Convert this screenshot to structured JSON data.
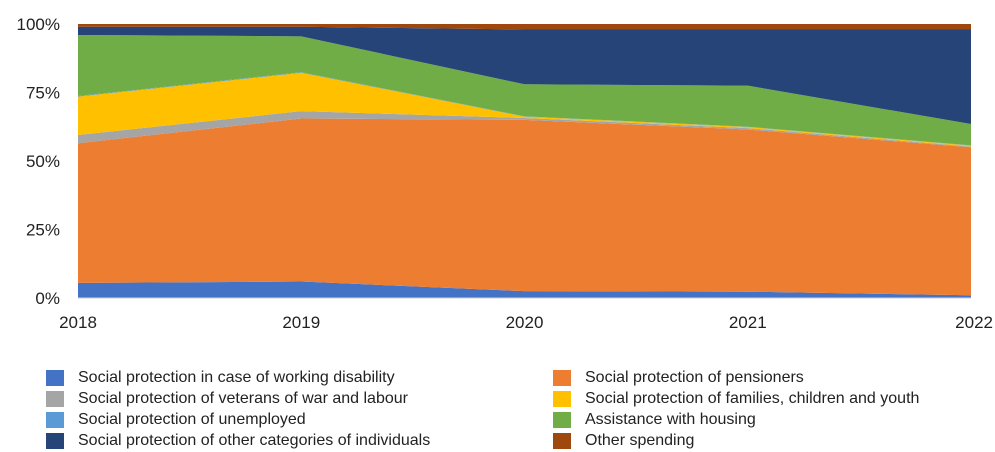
{
  "chart_data": {
    "type": "area",
    "stacked": true,
    "normalized": true,
    "x": [
      "2018",
      "2019",
      "2020",
      "2021",
      "2022"
    ],
    "ylim": [
      0,
      100
    ],
    "yticks": [
      "0%",
      "25%",
      "50%",
      "75%",
      "100%"
    ],
    "yticks_values": [
      0,
      25,
      50,
      75,
      100
    ],
    "grid": false,
    "legend_position": "bottom",
    "series": [
      {
        "name": "Social protection in case of working disability",
        "color": "#4472C4",
        "values": [
          5.5,
          6,
          2.5,
          2.3,
          1
        ]
      },
      {
        "name": "Social protection of pensioners",
        "color": "#ED7D31",
        "values": [
          51,
          59.5,
          62.5,
          59.2,
          54
        ]
      },
      {
        "name": "Social protection of veterans of war and labour",
        "color": "#A5A5A5",
        "values": [
          3,
          2.7,
          0.7,
          0.5,
          0.3
        ]
      },
      {
        "name": "Social protection of families, children and youth",
        "color": "#FFC000",
        "values": [
          14,
          14,
          0.5,
          0.4,
          0.3
        ]
      },
      {
        "name": "Social protection of unemployed",
        "color": "#5B9BD5",
        "values": [
          0.2,
          0.2,
          0.1,
          0.1,
          0.1
        ]
      },
      {
        "name": "Assistance with housing",
        "color": "#70AD47",
        "values": [
          22.3,
          13.1,
          11.7,
          15,
          7.8
        ]
      },
      {
        "name": "Social protection of other categories of individuals",
        "color": "#264478",
        "values": [
          3,
          3.5,
          20,
          20.5,
          34.5
        ]
      },
      {
        "name": "Other spending",
        "color": "#9E480E",
        "values": [
          1,
          1,
          2,
          2,
          2
        ]
      }
    ]
  },
  "legend": [
    {
      "label": "Social protection in case of working disability",
      "color": "#4472C4"
    },
    {
      "label": "Social protection of pensioners",
      "color": "#ED7D31"
    },
    {
      "label": "Social protection of veterans of war and labour",
      "color": "#A5A5A5"
    },
    {
      "label": "Social protection of families, children and youth",
      "color": "#FFC000"
    },
    {
      "label": "Social protection of unemployed",
      "color": "#5B9BD5"
    },
    {
      "label": "Assistance with housing",
      "color": "#70AD47"
    },
    {
      "label": "Social protection of other categories of individuals",
      "color": "#264478"
    },
    {
      "label": "Other spending",
      "color": "#9E480E"
    }
  ]
}
